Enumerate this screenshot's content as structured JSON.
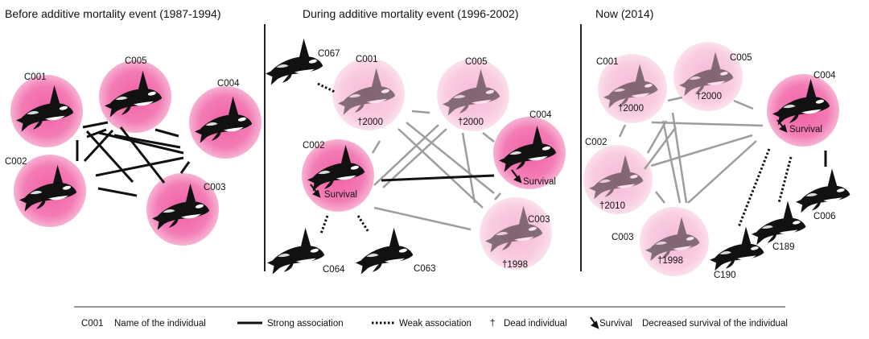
{
  "panels": [
    {
      "title": "Before additive mortality event (1987-1994)",
      "nodes": [
        {
          "id": "C001",
          "label": "C001"
        },
        {
          "id": "C005",
          "label": "C005"
        },
        {
          "id": "C004",
          "label": "C004"
        },
        {
          "id": "C002",
          "label": "C002"
        },
        {
          "id": "C003",
          "label": "C003"
        }
      ]
    },
    {
      "title": "During additive mortality event (1996-2002)",
      "nodes": [
        {
          "id": "C067",
          "label": "C067"
        },
        {
          "id": "C001",
          "label": "C001",
          "note": "†2000"
        },
        {
          "id": "C005",
          "label": "C005",
          "note": "†2000"
        },
        {
          "id": "C004",
          "label": "C004",
          "note": "Survival"
        },
        {
          "id": "C002",
          "label": "C002",
          "note": "Survival"
        },
        {
          "id": "C003",
          "label": "C003",
          "note": "†1998"
        },
        {
          "id": "C064",
          "label": "C064"
        },
        {
          "id": "C063",
          "label": "C063"
        }
      ]
    },
    {
      "title": "Now (2014)",
      "nodes": [
        {
          "id": "C001",
          "label": "C001",
          "note": "†2000"
        },
        {
          "id": "C005",
          "label": "C005",
          "note": "†2000"
        },
        {
          "id": "C004",
          "label": "C004",
          "note": "Survival"
        },
        {
          "id": "C002",
          "label": "C002",
          "note": "†2010"
        },
        {
          "id": "C003",
          "label": "C003",
          "note": "†1998"
        },
        {
          "id": "C006",
          "label": "C006"
        },
        {
          "id": "C189",
          "label": "C189"
        },
        {
          "id": "C190",
          "label": "C190"
        }
      ]
    }
  ],
  "legend": {
    "name_code": "C001",
    "name_text": "Name of the individual",
    "strong": "Strong association",
    "weak": "Weak association",
    "dead_symbol": "†",
    "dead_text": "Dead individual",
    "survival_word": "Survival",
    "survival_text": "Decreased survival of the individual"
  },
  "colors": {
    "alive_halo": "#ee6aa7",
    "dead_halo": "#f8c6dd",
    "strong_line": "#111111",
    "faded_line": "#9a9a9a",
    "divider": "#222222"
  },
  "icons": [
    "orca-icon",
    "arrow-down-right-icon"
  ]
}
